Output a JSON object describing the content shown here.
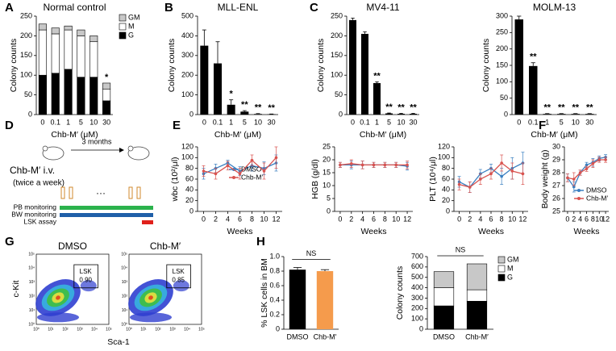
{
  "panel_labels": [
    "A",
    "B",
    "C",
    "D",
    "E",
    "F",
    "G",
    "H"
  ],
  "chart_data": [
    {
      "type": "stacked",
      "title": "Normal control",
      "y_label": "Colony counts",
      "x_label": "Chb-M′ (μM)",
      "categories": [
        "0",
        "0.1",
        "1",
        "5",
        "10",
        "30"
      ],
      "series": [
        {
          "name": "G",
          "color": "#000000",
          "values": [
            100,
            105,
            115,
            95,
            95,
            35
          ]
        },
        {
          "name": "M",
          "color": "#ffffff",
          "values": [
            115,
            100,
            100,
            105,
            90,
            30
          ]
        },
        {
          "name": "GM",
          "color": "#c8c8c8",
          "values": [
            15,
            15,
            10,
            15,
            15,
            15
          ]
        }
      ],
      "annotations": [
        null,
        null,
        null,
        null,
        null,
        "*"
      ],
      "ylim": [
        0,
        250
      ],
      "yticks": [
        0,
        50,
        100,
        150,
        200,
        250
      ]
    },
    {
      "type": "bar",
      "title": "MLL-ENL",
      "y_label": "Colony counts",
      "x_label": "Chb-M′ (μM)",
      "categories": [
        "0",
        "0.1",
        "1",
        "5",
        "10",
        "30"
      ],
      "color": "#000000",
      "values": [
        350,
        260,
        50,
        15,
        3,
        2
      ],
      "errors": [
        80,
        110,
        25,
        5,
        2,
        1
      ],
      "annotations": [
        null,
        null,
        "*",
        "**",
        "**",
        "**"
      ],
      "ylim": [
        0,
        500
      ],
      "yticks": [
        0,
        100,
        200,
        300,
        400,
        500
      ]
    },
    {
      "type": "bar",
      "title": "MV4-11",
      "y_label": "Colony counts",
      "x_label": "Chb-M′ (μM)",
      "categories": [
        "0",
        "0.1",
        "1",
        "5",
        "10",
        "30"
      ],
      "color": "#000000",
      "values": [
        240,
        205,
        80,
        3,
        2,
        2
      ],
      "errors": [
        5,
        5,
        3,
        1,
        1,
        1
      ],
      "annotations": [
        null,
        null,
        "**",
        "**",
        "**",
        "**"
      ],
      "ylim": [
        0,
        250
      ],
      "yticks": [
        0,
        50,
        100,
        150,
        200,
        250
      ]
    },
    {
      "type": "bar",
      "title": "MOLM-13",
      "y_label": "Colony counts",
      "x_label": "Chb-M′ (μM)",
      "categories": [
        "0",
        "0.1",
        "1",
        "5",
        "10",
        "30"
      ],
      "color": "#000000",
      "values": [
        290,
        148,
        2,
        2,
        2,
        2
      ],
      "errors": [
        10,
        10,
        1,
        1,
        1,
        1
      ],
      "annotations": [
        null,
        "**",
        "**",
        "**",
        "**",
        "**"
      ],
      "ylim": [
        0,
        300
      ],
      "yticks": [
        0,
        50,
        100,
        150,
        200,
        250,
        300
      ]
    },
    {
      "type": "line",
      "y_label": "wbc (10²/μl)",
      "x_label": "Weeks",
      "x": [
        0,
        2,
        4,
        6,
        8,
        10,
        12
      ],
      "xlim": [
        -1,
        13
      ],
      "xticks": [
        0,
        2,
        4,
        6,
        8,
        10,
        12
      ],
      "ylim": [
        0,
        120
      ],
      "yticks": [
        0,
        20,
        40,
        60,
        80,
        100,
        120
      ],
      "series": [
        {
          "name": "DMSO",
          "color": "#3a7fc1",
          "values": [
            70,
            80,
            90,
            75,
            85,
            80,
            90
          ],
          "errors": [
            10,
            8,
            5,
            8,
            10,
            12,
            15
          ]
        },
        {
          "name": "Chb-M′",
          "color": "#d9534f",
          "values": [
            75,
            70,
            85,
            70,
            95,
            75,
            100
          ],
          "errors": [
            10,
            10,
            8,
            10,
            10,
            15,
            20
          ]
        }
      ]
    },
    {
      "type": "line",
      "y_label": "HGB (g/dl)",
      "x_label": "Weeks",
      "x": [
        0,
        2,
        4,
        6,
        8,
        10,
        12
      ],
      "xlim": [
        -1,
        13
      ],
      "xticks": [
        0,
        2,
        4,
        6,
        8,
        10,
        12
      ],
      "ylim": [
        0,
        25
      ],
      "yticks": [
        0,
        5,
        10,
        15,
        20,
        25
      ],
      "series": [
        {
          "name": "DMSO",
          "color": "#3a7fc1",
          "values": [
            18,
            18,
            18,
            18,
            18,
            18,
            17.5
          ],
          "errors": [
            1,
            1.5,
            1.5,
            1,
            1,
            1,
            1.5
          ]
        },
        {
          "name": "Chb-M′",
          "color": "#d9534f",
          "values": [
            18,
            18.5,
            18,
            18,
            18,
            18,
            18
          ],
          "errors": [
            1,
            1.5,
            1.5,
            1,
            1,
            1,
            1.5
          ]
        }
      ]
    },
    {
      "type": "line",
      "y_label": "PLT (10⁴/μl)",
      "x_label": "Weeks",
      "x": [
        0,
        2,
        4,
        6,
        8,
        10,
        12
      ],
      "xlim": [
        -1,
        13
      ],
      "xticks": [
        0,
        2,
        4,
        6,
        8,
        10,
        12
      ],
      "ylim": [
        0,
        120
      ],
      "yticks": [
        0,
        20,
        40,
        60,
        80,
        100,
        120
      ],
      "series": [
        {
          "name": "DMSO",
          "color": "#3a7fc1",
          "values": [
            55,
            45,
            70,
            80,
            65,
            80,
            90
          ],
          "errors": [
            10,
            10,
            8,
            8,
            15,
            20,
            20
          ]
        },
        {
          "name": "Chb-M′",
          "color": "#d9534f",
          "values": [
            50,
            45,
            60,
            70,
            90,
            75,
            70
          ],
          "errors": [
            10,
            10,
            10,
            10,
            15,
            15,
            20
          ]
        }
      ]
    },
    {
      "type": "line",
      "y_label": "Body weight (g)",
      "x_label": "Weeks",
      "x": [
        0,
        2,
        4,
        6,
        8,
        10,
        12
      ],
      "xlim": [
        -1,
        13
      ],
      "xticks": [
        0,
        2,
        4,
        6,
        8,
        10,
        12
      ],
      "ylim": [
        25,
        30
      ],
      "yticks": [
        25,
        26,
        27,
        28,
        29,
        30
      ],
      "series": [
        {
          "name": "DMSO",
          "color": "#3a7fc1",
          "values": [
            27.6,
            26.9,
            28.0,
            28.6,
            28.8,
            29.1,
            29.2
          ],
          "errors": [
            0.3,
            0.4,
            0.2,
            0.2,
            0.3,
            0.2,
            0.2
          ]
        },
        {
          "name": "Chb-M′",
          "color": "#d9534f",
          "values": [
            27.6,
            27.5,
            28.0,
            28.3,
            28.7,
            29.0,
            29.0
          ],
          "errors": [
            0.3,
            0.5,
            0.2,
            0.2,
            0.3,
            0.2,
            0.2
          ]
        }
      ]
    },
    {
      "type": "bar",
      "y_label": "% LSK cells in BM",
      "categories": [
        "DMSO",
        "Chb-M′"
      ],
      "colors": [
        "#000000",
        "#f59b4c"
      ],
      "values": [
        0.82,
        0.8
      ],
      "errors": [
        0.03,
        0.02
      ],
      "annotation": "NS",
      "ylim": [
        0,
        1
      ],
      "yticks": [
        0,
        0.2,
        0.4,
        0.6,
        0.8,
        {
          "value": 1,
          "label": "1.0"
        }
      ]
    },
    {
      "type": "stacked",
      "y_label": "Colony counts",
      "categories": [
        "DMSO",
        "Chb-M′"
      ],
      "annotation": "NS",
      "series": [
        {
          "name": "G",
          "color": "#000000",
          "values": [
            225,
            270
          ]
        },
        {
          "name": "M",
          "color": "#ffffff",
          "values": [
            175,
            110
          ]
        },
        {
          "name": "GM",
          "color": "#c8c8c8",
          "values": [
            155,
            250
          ]
        }
      ],
      "ylim": [
        0,
        700
      ],
      "yticks": [
        0,
        100,
        200,
        300,
        400,
        500,
        600,
        700
      ]
    }
  ],
  "diagram": {
    "interval": "3 months",
    "treatment": "Chb-M′ i.v.",
    "schedule": "(twice a week)",
    "ellipsis": "···",
    "tracks": [
      "PB monitoring",
      "BW monitoring",
      "LSK assay"
    ]
  },
  "flow": {
    "titles": [
      "DMSO",
      "Chb-M′"
    ],
    "gate_label": "LSK",
    "gate_values": [
      "0.90",
      "0.85"
    ],
    "y_label": "c-Kit",
    "x_label": "Sca-1",
    "ticks": [
      "10⁰",
      "10¹",
      "10²",
      "10³",
      "10⁴",
      "10⁵"
    ]
  }
}
